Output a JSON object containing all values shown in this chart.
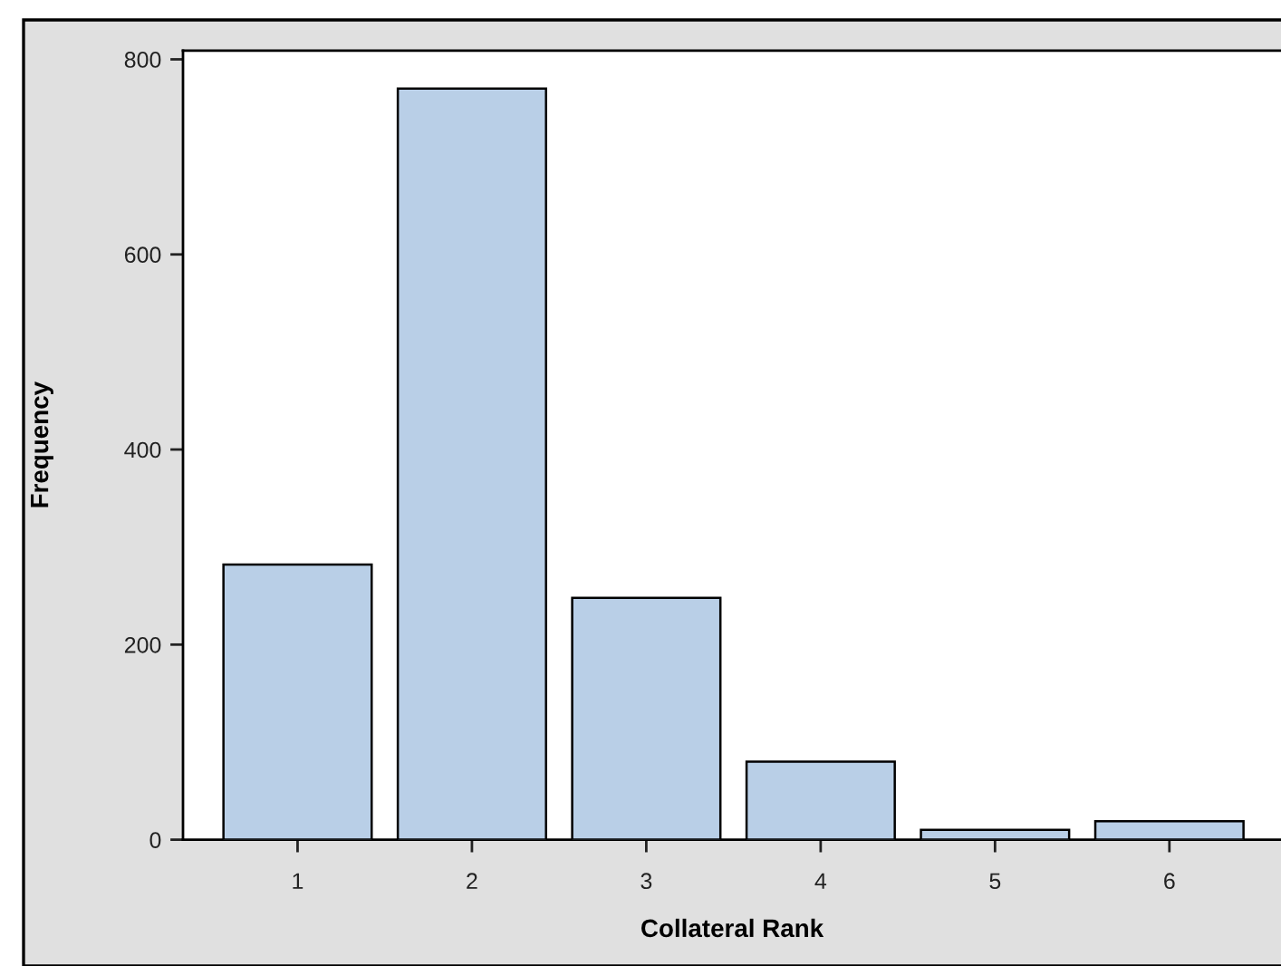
{
  "chart_data": {
    "type": "bar",
    "xlabel": "Collateral Rank",
    "ylabel": "Frequency",
    "categories": [
      "1",
      "2",
      "3",
      "4",
      "5",
      "6"
    ],
    "values": [
      282,
      770,
      248,
      80,
      10,
      19
    ],
    "color": "#b9cfe7",
    "ylim": [
      0,
      809
    ],
    "yticks": [
      0,
      200,
      400,
      600,
      800
    ],
    "grid": false,
    "legend": false
  }
}
